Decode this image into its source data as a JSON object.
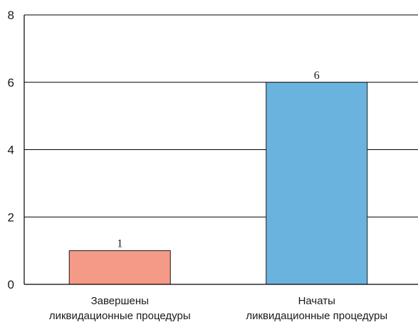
{
  "chart_data": {
    "type": "bar",
    "categories": [
      [
        "Завершены",
        "ликвидационные процедуры"
      ],
      [
        "Начаты",
        "ликвидационные процедуры"
      ]
    ],
    "values": [
      1,
      6
    ],
    "data_labels": [
      "1",
      "6"
    ],
    "colors": [
      "#f59a87",
      "#6ab3de"
    ],
    "y_ticks": [
      "0",
      "2",
      "4",
      "6",
      "8"
    ],
    "ylim": [
      0,
      8
    ],
    "grid": true,
    "title": "",
    "xlabel": "",
    "ylabel": ""
  }
}
